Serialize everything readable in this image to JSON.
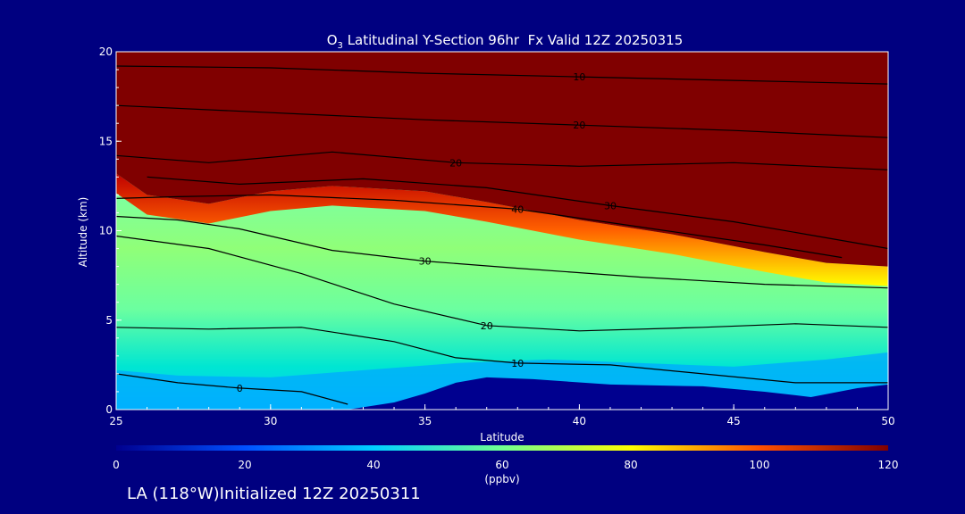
{
  "chart_data": {
    "type": "heatmap",
    "title_prefix": "O",
    "title_sub": "3",
    "title_rest": " Latitudinal Y-Section 96hr  Fx Valid 12Z 20250315",
    "xlabel": "Latitude",
    "ylabel": "Altitude (km)",
    "xlim": [
      25,
      50
    ],
    "ylim": [
      0,
      20
    ],
    "x_ticks": [
      "25",
      "30",
      "35",
      "40",
      "45",
      "50"
    ],
    "y_ticks": [
      "0",
      "5",
      "10",
      "15",
      "20"
    ],
    "colorbar": {
      "min": 0,
      "max": 120,
      "ticks": [
        "0",
        "20",
        "40",
        "60",
        "80",
        "100",
        "120"
      ],
      "units": "(ppbv)",
      "colors": [
        "#00008f",
        "#0050ff",
        "#00d0ff",
        "#70ff90",
        "#ffff00",
        "#ff5000",
        "#800000"
      ]
    },
    "contour_labels": [
      "10",
      "20",
      "30",
      "40"
    ],
    "footer": "LA (118°W)Initialized 12Z 20250311",
    "terrain": [
      [
        32.5,
        0
      ],
      [
        34,
        0.4
      ],
      [
        35,
        0.9
      ],
      [
        36,
        1.5
      ],
      [
        37,
        1.8
      ],
      [
        38.5,
        1.7
      ],
      [
        41,
        1.4
      ],
      [
        44,
        1.3
      ],
      [
        46,
        1.0
      ],
      [
        47.5,
        0.7
      ],
      [
        49,
        1.2
      ],
      [
        50,
        1.4
      ]
    ],
    "tropopause_base": [
      [
        25,
        13.2
      ],
      [
        26,
        12.0
      ],
      [
        28,
        11.5
      ],
      [
        30,
        12.2
      ],
      [
        32,
        12.5
      ],
      [
        35,
        12.2
      ],
      [
        37,
        11.6
      ],
      [
        40,
        10.6
      ],
      [
        43,
        9.8
      ],
      [
        46,
        8.8
      ],
      [
        48,
        8.2
      ],
      [
        50,
        8.0
      ]
    ],
    "contours": [
      {
        "label": "10",
        "points": [
          [
            25,
            19.2
          ],
          [
            30,
            19.1
          ],
          [
            35,
            18.8
          ],
          [
            40,
            18.6
          ],
          [
            45,
            18.4
          ],
          [
            50,
            18.2
          ]
        ]
      },
      {
        "label": "20",
        "points": [
          [
            25,
            17.0
          ],
          [
            30,
            16.6
          ],
          [
            35,
            16.2
          ],
          [
            40,
            15.9
          ],
          [
            45,
            15.6
          ],
          [
            50,
            15.2
          ]
        ]
      },
      {
        "label": "20",
        "points": [
          [
            25,
            14.2
          ],
          [
            28,
            13.8
          ],
          [
            32,
            14.4
          ],
          [
            36,
            13.8
          ],
          [
            40,
            13.6
          ],
          [
            45,
            13.8
          ],
          [
            50,
            13.4
          ]
        ]
      },
      {
        "label": "30",
        "points": [
          [
            26,
            13.0
          ],
          [
            29,
            12.6
          ],
          [
            33,
            12.9
          ],
          [
            37,
            12.4
          ],
          [
            41,
            11.4
          ],
          [
            45,
            10.5
          ],
          [
            48,
            9.6
          ],
          [
            50,
            9.0
          ]
        ]
      },
      {
        "label": "40",
        "points": [
          [
            25,
            11.8
          ],
          [
            27,
            11.9
          ],
          [
            30,
            12.0
          ],
          [
            34,
            11.7
          ],
          [
            38,
            11.2
          ],
          [
            42,
            10.2
          ],
          [
            46,
            9.2
          ],
          [
            48.5,
            8.5
          ]
        ]
      },
      {
        "label": "30",
        "points": [
          [
            25,
            10.8
          ],
          [
            27,
            10.6
          ],
          [
            29,
            10.1
          ],
          [
            32,
            8.9
          ],
          [
            35,
            8.3
          ],
          [
            38,
            7.9
          ],
          [
            42,
            7.4
          ],
          [
            46,
            7.0
          ],
          [
            50,
            6.8
          ]
        ]
      },
      {
        "label": "20",
        "points": [
          [
            25,
            9.7
          ],
          [
            28,
            9.0
          ],
          [
            31,
            7.6
          ],
          [
            34,
            5.9
          ],
          [
            37,
            4.7
          ],
          [
            40,
            4.4
          ],
          [
            44,
            4.6
          ],
          [
            47,
            4.8
          ],
          [
            50,
            4.6
          ]
        ]
      },
      {
        "label": "10",
        "points": [
          [
            25,
            4.6
          ],
          [
            28,
            4.5
          ],
          [
            31,
            4.6
          ],
          [
            34,
            3.8
          ],
          [
            36,
            2.9
          ],
          [
            38,
            2.6
          ],
          [
            41,
            2.5
          ],
          [
            44,
            2.0
          ],
          [
            47,
            1.5
          ],
          [
            50,
            1.5
          ]
        ]
      },
      {
        "label": "0",
        "points": [
          [
            25,
            2.0
          ],
          [
            27,
            1.5
          ],
          [
            29,
            1.2
          ],
          [
            31,
            1.0
          ],
          [
            32.5,
            0.3
          ]
        ]
      }
    ]
  },
  "colors": {
    "background": "#000080",
    "axis": "#ffffff",
    "contour": "#000000",
    "stratosphere": "#800000"
  }
}
